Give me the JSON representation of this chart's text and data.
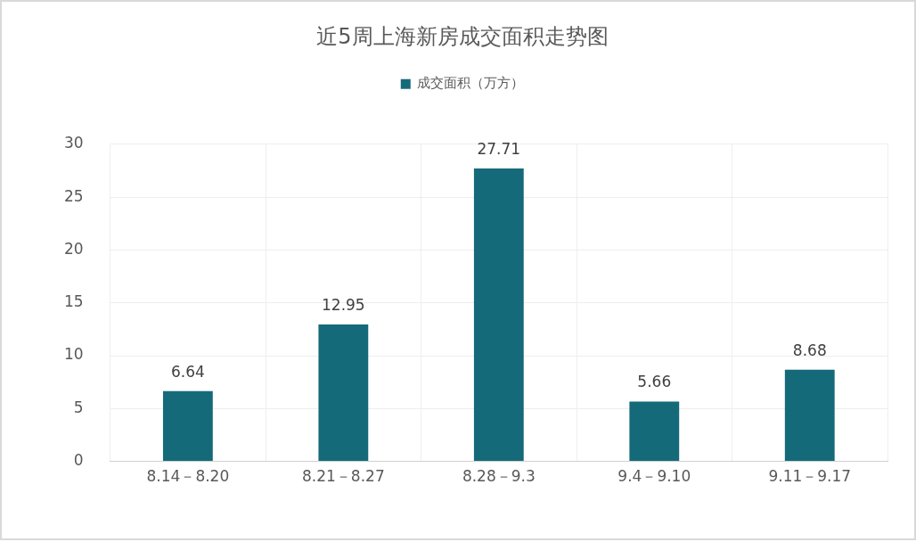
{
  "chart_data": {
    "type": "bar",
    "title": "近5周上海新房成交面积走势图",
    "categories": [
      "8.14－8.20",
      "8.21－8.27",
      "8.28－9.3",
      "9.4－9.10",
      "9.11－9.17"
    ],
    "series": [
      {
        "name": "成交面积（万方）",
        "color": "#156a7a",
        "values": [
          6.64,
          12.95,
          27.71,
          5.66,
          8.68
        ]
      }
    ],
    "ylim": [
      0,
      30
    ],
    "yticks": [
      0,
      5,
      10,
      15,
      20,
      25,
      30
    ],
    "grid": true,
    "legend": "top",
    "data_labels": true
  }
}
